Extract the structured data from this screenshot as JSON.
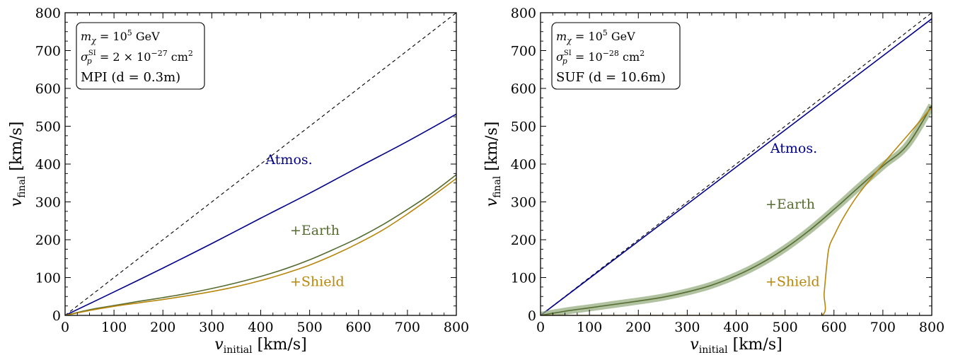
{
  "colors": {
    "atmos": "#00008b",
    "earth": "#556b2f",
    "earth_band": "#8fa876",
    "shield": "#b8860b",
    "diagonal": "#000000"
  },
  "chart_data": [
    {
      "type": "line",
      "xlabel_main": "v",
      "xlabel_sub": "initial",
      "xlabel_unit": "[km/s]",
      "ylabel_main": "v",
      "ylabel_sub": "final",
      "ylabel_unit": "[km/s]",
      "xlim": [
        0,
        800
      ],
      "ylim": [
        0,
        800
      ],
      "xticks": [
        "0",
        "100",
        "200",
        "300",
        "400",
        "500",
        "600",
        "700",
        "800"
      ],
      "yticks": [
        "0",
        "100",
        "200",
        "300",
        "400",
        "500",
        "600",
        "700",
        "800"
      ],
      "legend": {
        "position": "top-left",
        "line1": "m_χ = 10^5 GeV",
        "line1_a": "m",
        "line1_sub": "χ",
        "line1_b": " = 10",
        "line1_sup": "5",
        "line1_c": " GeV",
        "line2_a": "σ",
        "line2_sub": "p",
        "line2_sup": "SI",
        "line2_b": " = 2 × 10",
        "line2_exp": "−27",
        "line2_c": " cm",
        "line2_sup2": "2",
        "line3": "MPI (d = 0.3m)"
      },
      "series": [
        {
          "name": "Atmos.",
          "color_key": "atmos",
          "x": [
            0,
            100,
            200,
            300,
            400,
            500,
            600,
            700,
            800
          ],
          "y": [
            0,
            62,
            125,
            190,
            257,
            323,
            392,
            460,
            532
          ]
        },
        {
          "name": "+Earth",
          "color_key": "earth",
          "x": [
            0,
            50,
            100,
            150,
            200,
            250,
            300,
            350,
            400,
            450,
            500,
            550,
            600,
            650,
            700,
            750,
            800
          ],
          "y": [
            0,
            15,
            26,
            37,
            47,
            58,
            71,
            86,
            103,
            123,
            147,
            175,
            205,
            240,
            280,
            323,
            372
          ]
        },
        {
          "name": "+Shield",
          "color_key": "shield",
          "x": [
            0,
            50,
            100,
            150,
            200,
            250,
            300,
            350,
            400,
            450,
            500,
            550,
            600,
            650,
            700,
            750,
            800
          ],
          "y": [
            0,
            13,
            24,
            33,
            42,
            52,
            63,
            76,
            92,
            111,
            133,
            160,
            191,
            226,
            268,
            314,
            362
          ]
        }
      ],
      "labels": [
        {
          "text": "Atmos.",
          "series": 0,
          "x": 410,
          "y": 400
        },
        {
          "text": "+Earth",
          "series": 1,
          "x": 460,
          "y": 213
        },
        {
          "text": "+Shield",
          "series": 2,
          "x": 460,
          "y": 78
        }
      ],
      "diagonal": true
    },
    {
      "type": "line",
      "xlabel_main": "v",
      "xlabel_sub": "initial",
      "xlabel_unit": "[km/s]",
      "ylabel_main": "v",
      "ylabel_sub": "final",
      "ylabel_unit": "[km/s]",
      "xlim": [
        0,
        800
      ],
      "ylim": [
        0,
        800
      ],
      "xticks": [
        "0",
        "100",
        "200",
        "300",
        "400",
        "500",
        "600",
        "700",
        "800"
      ],
      "yticks": [
        "0",
        "100",
        "200",
        "300",
        "400",
        "500",
        "600",
        "700",
        "800"
      ],
      "legend": {
        "position": "top-left",
        "line1": "m_χ = 10^5 GeV",
        "line1_a": "m",
        "line1_sub": "χ",
        "line1_b": " = 10",
        "line1_sup": "5",
        "line1_c": " GeV",
        "line2_a": "σ",
        "line2_sub": "p",
        "line2_sup": "SI",
        "line2_b": " = 10",
        "line2_exp": "−28",
        "line2_c": " cm",
        "line2_sup2": "2",
        "line3": "SUF (d = 10.6m)"
      },
      "series": [
        {
          "name": "Atmos.",
          "color_key": "atmos",
          "x": [
            0,
            100,
            200,
            300,
            400,
            500,
            600,
            700,
            800
          ],
          "y": [
            0,
            98,
            196,
            294,
            392,
            490,
            588,
            686,
            784
          ]
        },
        {
          "name": "+Earth",
          "color_key": "earth",
          "band": 10,
          "x": [
            0,
            50,
            100,
            150,
            200,
            250,
            300,
            350,
            400,
            450,
            500,
            550,
            600,
            650,
            700,
            750,
            800
          ],
          "y": [
            0,
            11,
            20,
            29,
            38,
            48,
            62,
            80,
            105,
            137,
            177,
            225,
            280,
            338,
            395,
            450,
            555
          ]
        },
        {
          "name": "+Shield",
          "color_key": "shield",
          "x": [
            0,
            100,
            200,
            300,
            400,
            500,
            575,
            580,
            585,
            590,
            600,
            620,
            650,
            700,
            750,
            800
          ],
          "y": [
            0,
            0,
            0,
            0,
            0,
            0,
            0,
            60,
            130,
            180,
            210,
            260,
            320,
            400,
            475,
            550
          ]
        }
      ],
      "labels": [
        {
          "text": "Atmos.",
          "series": 0,
          "x": 470,
          "y": 430
        },
        {
          "text": "+Earth",
          "series": 1,
          "x": 460,
          "y": 282
        },
        {
          "text": "+Shield",
          "series": 2,
          "x": 460,
          "y": 78
        }
      ],
      "diagonal": true
    }
  ]
}
